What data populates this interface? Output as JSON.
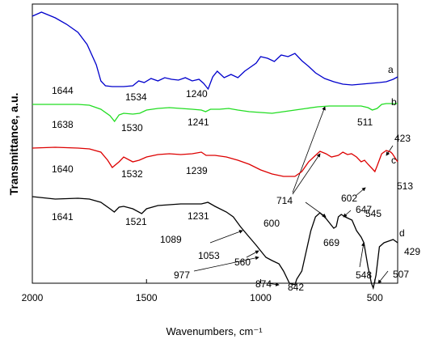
{
  "chart_data": {
    "type": "line",
    "x_label": "Wavenumbers, cm⁻¹",
    "y_label": "Transmittance, a.u.",
    "xlim": [
      2000,
      400
    ],
    "ylim": [
      0,
      345
    ],
    "xticks": [
      2000,
      1500,
      1000,
      500
    ],
    "series": [
      {
        "name": "a",
        "color": "#0000cc",
        "x": [
          2000,
          1960,
          1900,
          1850,
          1800,
          1760,
          1720,
          1700,
          1680,
          1650,
          1600,
          1560,
          1534,
          1510,
          1480,
          1450,
          1420,
          1390,
          1360,
          1330,
          1300,
          1270,
          1250,
          1230,
          1210,
          1190,
          1160,
          1130,
          1100,
          1070,
          1050,
          1020,
          1000,
          970,
          940,
          910,
          880,
          850,
          820,
          790,
          760,
          720,
          680,
          640,
          600,
          560,
          520,
          480,
          450,
          420,
          400
        ],
        "values": [
          330,
          335,
          328,
          320,
          310,
          295,
          270,
          250,
          244,
          243,
          243,
          244,
          250,
          248,
          253,
          250,
          254,
          252,
          251,
          254,
          250,
          252,
          247,
          240,
          255,
          262,
          254,
          258,
          254,
          262,
          266,
          272,
          280,
          278,
          274,
          282,
          280,
          284,
          275,
          268,
          260,
          253,
          249,
          246,
          245,
          246,
          247,
          248,
          249,
          252,
          255
        ]
      },
      {
        "name": "b",
        "color": "#22dd22",
        "x": [
          2000,
          1900,
          1800,
          1750,
          1700,
          1660,
          1640,
          1620,
          1600,
          1560,
          1530,
          1500,
          1450,
          1400,
          1350,
          1300,
          1260,
          1241,
          1220,
          1180,
          1140,
          1100,
          1050,
          1000,
          950,
          900,
          850,
          800,
          750,
          700,
          650,
          600,
          560,
          530,
          511,
          490,
          470,
          450,
          430,
          400
        ],
        "values": [
          221,
          221,
          221,
          220,
          215,
          207,
          200,
          208,
          210,
          209,
          210,
          214,
          216,
          217,
          216,
          215,
          214,
          212,
          215,
          215,
          216,
          214,
          212,
          211,
          210,
          212,
          214,
          216,
          218,
          219,
          219,
          219,
          219,
          217,
          214,
          216,
          221,
          222,
          222,
          222
        ]
      },
      {
        "name": "c",
        "color": "#dd0000",
        "x": [
          2000,
          1900,
          1800,
          1750,
          1700,
          1670,
          1650,
          1620,
          1600,
          1560,
          1532,
          1500,
          1450,
          1400,
          1350,
          1300,
          1260,
          1239,
          1200,
          1150,
          1100,
          1050,
          1000,
          950,
          900,
          850,
          820,
          790,
          760,
          740,
          714,
          690,
          660,
          640,
          620,
          602,
          580,
          560,
          545,
          530,
          513,
          500,
          490,
          470,
          450,
          430,
          423,
          400
        ],
        "values": [
          167,
          168,
          167,
          166,
          162,
          152,
          143,
          150,
          156,
          150,
          152,
          156,
          159,
          160,
          159,
          160,
          162,
          158,
          158,
          156,
          152,
          147,
          140,
          135,
          132,
          132,
          138,
          150,
          158,
          163,
          160,
          156,
          158,
          162,
          159,
          160,
          156,
          150,
          152,
          147,
          142,
          138,
          145,
          160,
          164,
          162,
          160,
          150
        ]
      },
      {
        "name": "d",
        "color": "#000000",
        "x": [
          2000,
          1900,
          1800,
          1750,
          1700,
          1660,
          1641,
          1620,
          1600,
          1560,
          1521,
          1500,
          1450,
          1400,
          1350,
          1300,
          1260,
          1231,
          1200,
          1150,
          1120,
          1089,
          1053,
          1020,
          1000,
          977,
          950,
          920,
          900,
          874,
          850,
          842,
          820,
          800,
          780,
          760,
          740,
          714,
          700,
          680,
          669,
          660,
          647,
          630,
          600,
          580,
          560,
          548,
          530,
          515,
          507,
          495,
          480,
          460,
          440,
          420,
          400
        ],
        "values": [
          107,
          104,
          105,
          104,
          100,
          92,
          88,
          94,
          95,
          92,
          86,
          92,
          96,
          97,
          98,
          98,
          98,
          100,
          95,
          88,
          82,
          70,
          58,
          47,
          40,
          32,
          28,
          24,
          15,
          0,
          -2,
          5,
          15,
          40,
          65,
          82,
          87,
          80,
          75,
          68,
          70,
          82,
          85,
          82,
          78,
          65,
          57,
          50,
          20,
          0,
          -6,
          10,
          45,
          50,
          52,
          54,
          50
        ]
      }
    ],
    "annotations": [
      "1644",
      "1534",
      "1240",
      "1638",
      "1530",
      "1241",
      "511",
      "1640",
      "1532",
      "1239",
      "714",
      "602",
      "545",
      "513",
      "423",
      "1641",
      "1521",
      "1231",
      "600",
      "1089",
      "1053",
      "560",
      "977",
      "874",
      "842",
      "669",
      "647",
      "548",
      "507",
      "429"
    ]
  }
}
